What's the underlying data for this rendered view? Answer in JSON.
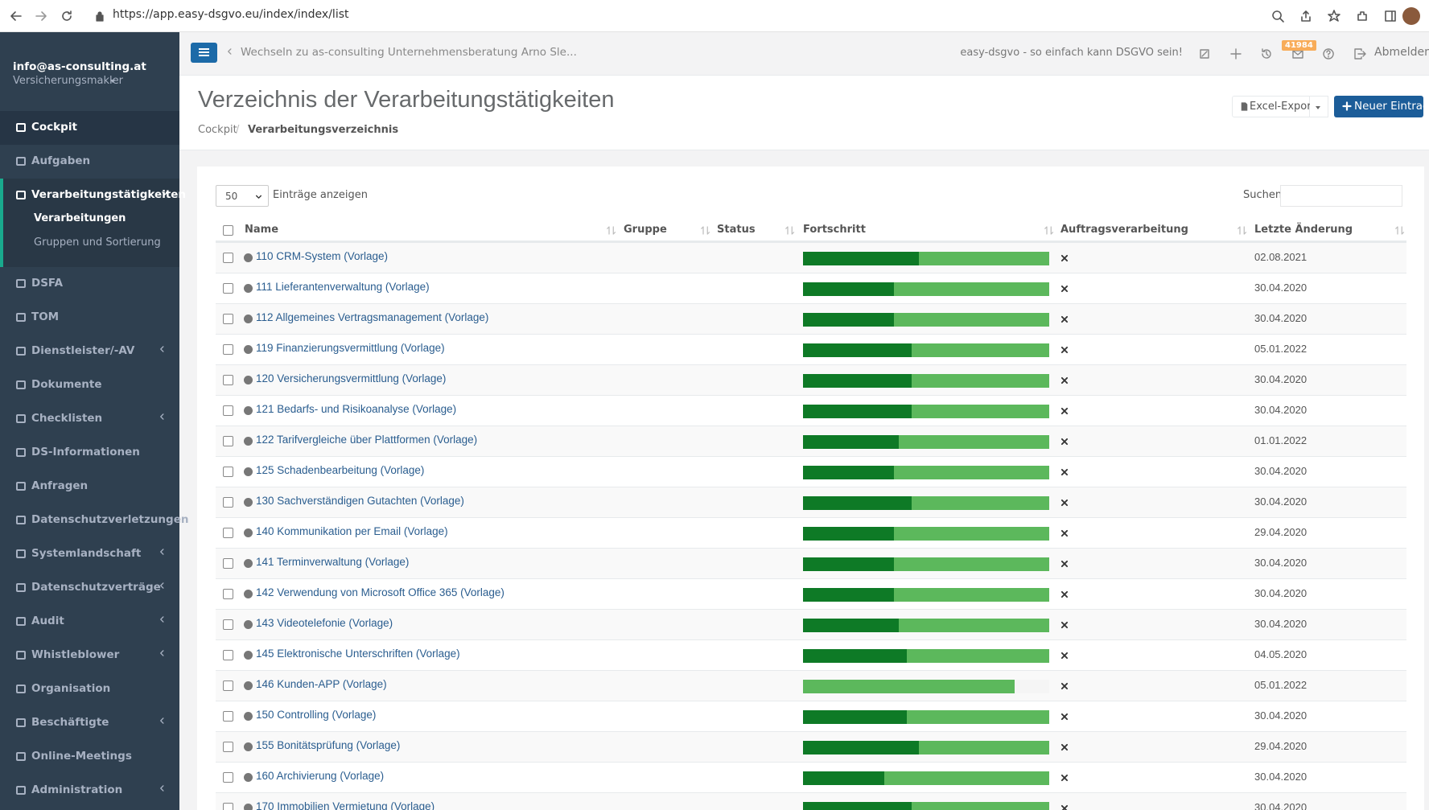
{
  "browser": {
    "url": "https://app.easy-dsgvo.eu/index/index/list"
  },
  "sidebar": {
    "user": "info@as-consulting.at",
    "role": "Versicherungsmakler",
    "menu": [
      {
        "label": "Cockpit",
        "highlight": true
      },
      {
        "label": "Aufgaben"
      },
      {
        "label": "Verarbeitungstätigkeiten",
        "active": true,
        "submenu": true,
        "children": [
          "Verarbeitungen",
          "Gruppen und Sortierung"
        ]
      },
      {
        "label": "DSFA"
      },
      {
        "label": "TOM"
      },
      {
        "label": "Dienstleister/-AV",
        "submenu": true
      },
      {
        "label": "Dokumente"
      },
      {
        "label": "Checklisten",
        "submenu": true
      },
      {
        "label": "DS-Informationen"
      },
      {
        "label": "Anfragen"
      },
      {
        "label": "Datenschutzverletzungen"
      },
      {
        "label": "Systemlandschaft",
        "submenu": true
      },
      {
        "label": "Datenschutzverträge",
        "submenu": true
      },
      {
        "label": "Audit",
        "submenu": true
      },
      {
        "label": "Whistleblower",
        "submenu": true
      },
      {
        "label": "Organisation"
      },
      {
        "label": "Beschäftigte",
        "submenu": true
      },
      {
        "label": "Online-Meetings"
      },
      {
        "label": "Administration",
        "submenu": true
      }
    ]
  },
  "topbar": {
    "switch": "Wechseln zu as-consulting Unternehmensberatung Arno Sle...",
    "slogan": "easy-dsgvo - so einfach kann DSGVO sein!",
    "badge": "41984",
    "logout": "Abmelden"
  },
  "page": {
    "title": "Verzeichnis der Verarbeitungstätigkeiten",
    "breadcrumb": [
      "Cockpit",
      "Verarbeitungsverzeichnis"
    ],
    "separator": "/",
    "export": "Excel-Export",
    "new": "Neuer Eintrag"
  },
  "table": {
    "length": "50",
    "length_label": "Einträge anzeigen",
    "search_label": "Suchen",
    "columns": [
      "Name",
      "Gruppe",
      "Status",
      "Fortschritt",
      "Auftragsverarbeitung",
      "Letzte Änderung"
    ],
    "rows": [
      {
        "name": "110 CRM-System (Vorlage)",
        "progress": [
          47,
          53
        ],
        "date": "02.08.2021"
      },
      {
        "name": "111 Lieferantenverwaltung (Vorlage)",
        "progress": [
          37,
          63
        ],
        "date": "30.04.2020"
      },
      {
        "name": "112 Allgemeines Vertragsmanagement (Vorlage)",
        "progress": [
          37,
          63
        ],
        "date": "30.04.2020"
      },
      {
        "name": "119 Finanzierungsvermittlung (Vorlage)",
        "progress": [
          44,
          56
        ],
        "date": "05.01.2022"
      },
      {
        "name": "120 Versicherungsvermittlung (Vorlage)",
        "progress": [
          44,
          56
        ],
        "date": "30.04.2020"
      },
      {
        "name": "121 Bedarfs- und Risikoanalyse (Vorlage)",
        "progress": [
          44,
          56
        ],
        "date": "30.04.2020"
      },
      {
        "name": "122 Tarifvergleiche über Plattformen (Vorlage)",
        "progress": [
          39,
          61
        ],
        "date": "01.01.2022"
      },
      {
        "name": "125 Schadenbearbeitung (Vorlage)",
        "progress": [
          37,
          63
        ],
        "date": "30.04.2020"
      },
      {
        "name": "130 Sachverständigen Gutachten (Vorlage)",
        "progress": [
          44,
          56
        ],
        "date": "30.04.2020"
      },
      {
        "name": "140 Kommunikation per Email (Vorlage)",
        "progress": [
          37,
          63
        ],
        "date": "29.04.2020"
      },
      {
        "name": "141 Terminverwaltung (Vorlage)",
        "progress": [
          37,
          63
        ],
        "date": "30.04.2020"
      },
      {
        "name": "142 Verwendung von Microsoft Office 365 (Vorlage)",
        "progress": [
          37,
          63
        ],
        "date": "30.04.2020"
      },
      {
        "name": "143 Videotelefonie (Vorlage)",
        "progress": [
          39,
          61
        ],
        "date": "30.04.2020"
      },
      {
        "name": "145 Elektronische Unterschriften (Vorlage)",
        "progress": [
          42,
          58
        ],
        "date": "04.05.2020"
      },
      {
        "name": "146 Kunden-APP (Vorlage)",
        "progress": [
          0,
          86
        ],
        "date": "05.01.2022"
      },
      {
        "name": "150 Controlling (Vorlage)",
        "progress": [
          42,
          58
        ],
        "date": "30.04.2020"
      },
      {
        "name": "155 Bonitätsprüfung (Vorlage)",
        "progress": [
          47,
          53
        ],
        "date": "29.04.2020"
      },
      {
        "name": "160 Archivierung (Vorlage)",
        "progress": [
          33,
          67
        ],
        "date": "30.04.2020"
      },
      {
        "name": "170 Immobilien Vermietung (Vorlage)",
        "progress": [
          44,
          56
        ],
        "date": "30.04.2020"
      }
    ]
  }
}
